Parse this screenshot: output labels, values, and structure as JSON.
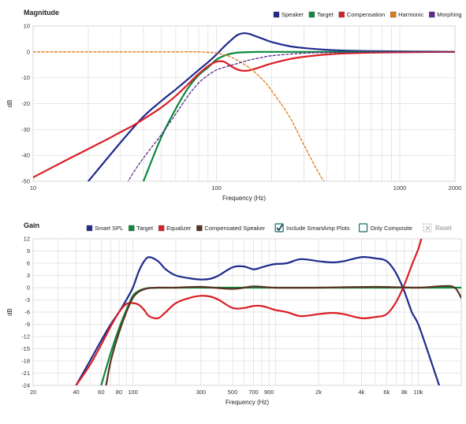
{
  "chart_data": [
    {
      "type": "line",
      "title": "Magnitude",
      "xlabel": "Frequency (Hz)",
      "ylabel": "dB",
      "xscale": "log",
      "xlim": [
        10,
        2000
      ],
      "ylim": [
        -50,
        10
      ],
      "xticks": [
        {
          "v": 10,
          "label": "10"
        },
        {
          "v": 100,
          "label": "100"
        },
        {
          "v": 1000,
          "label": "1000"
        },
        {
          "v": 2000,
          "label": "2000"
        }
      ],
      "yticks": [
        10,
        0,
        -10,
        -20,
        -30,
        -40,
        -50
      ],
      "grid": true,
      "legend": "top-right",
      "series": [
        {
          "name": "Speaker",
          "color": "#1f2a8c",
          "dashed": false,
          "x": [
            20,
            30,
            40,
            50,
            60,
            70,
            80,
            90,
            100,
            110,
            120,
            130,
            140,
            150,
            160,
            180,
            200,
            250,
            300,
            400,
            500,
            700,
            1000,
            1500,
            2000
          ],
          "y": [
            -50,
            -35,
            -25,
            -19,
            -14.5,
            -10.5,
            -7,
            -4,
            -1,
            2,
            4.5,
            6.5,
            7.2,
            7,
            6.3,
            5,
            3.8,
            2.2,
            1.5,
            0.8,
            0.5,
            0.3,
            0.2,
            0.1,
            0
          ]
        },
        {
          "name": "Target",
          "color": "#0a8a3a",
          "dashed": false,
          "x": [
            40,
            50,
            60,
            70,
            80,
            90,
            100,
            110,
            120,
            130,
            150,
            170,
            200,
            300,
            500,
            1000,
            2000
          ],
          "y": [
            -50,
            -33,
            -22,
            -14,
            -9,
            -6,
            -3,
            -1.5,
            -0.7,
            -0.3,
            -0.1,
            0,
            0,
            0,
            0,
            0,
            0
          ]
        },
        {
          "name": "Compensation",
          "color": "#d91f26",
          "dashed": false,
          "x": [
            10,
            15,
            20,
            25,
            30,
            35,
            40,
            50,
            60,
            70,
            80,
            90,
            100,
            110,
            120,
            130,
            140,
            150,
            170,
            200,
            250,
            300,
            400,
            500,
            700,
            1000,
            2000
          ],
          "y": [
            -48.5,
            -42,
            -37.5,
            -34,
            -31,
            -28.5,
            -26,
            -21.5,
            -17,
            -12.5,
            -8.5,
            -5.5,
            -3.8,
            -3.8,
            -5.5,
            -6.8,
            -7.3,
            -7.2,
            -6.1,
            -4.5,
            -2.8,
            -1.9,
            -1,
            -0.6,
            -0.3,
            -0.15,
            0
          ]
        },
        {
          "name": "Harmonic",
          "color": "#e07b10",
          "dashed": true,
          "x": [
            10,
            20,
            40,
            60,
            80,
            100,
            120,
            150,
            180,
            200,
            250,
            300,
            350,
            400
          ],
          "y": [
            0,
            0,
            0,
            0,
            0,
            -0.5,
            -2,
            -6,
            -11,
            -15,
            -25,
            -36,
            -45,
            -52
          ]
        },
        {
          "name": "Morphing",
          "color": "#5a2a8c",
          "dashed": true,
          "x": [
            30,
            35,
            40,
            50,
            60,
            70,
            80,
            90,
            100,
            110,
            120,
            130,
            140,
            150,
            170,
            200,
            300,
            500,
            1000,
            2000
          ],
          "y": [
            -55,
            -47,
            -41,
            -32,
            -24,
            -17,
            -12,
            -9,
            -7,
            -6,
            -5.2,
            -4.5,
            -3.8,
            -3.2,
            -2.4,
            -1.5,
            -0.5,
            -0.2,
            0,
            0
          ]
        }
      ]
    },
    {
      "type": "line",
      "title": "Gain",
      "xlabel": "Frequency (Hz)",
      "ylabel": "dB",
      "xscale": "log",
      "xlim": [
        20,
        20000
      ],
      "ylim": [
        -24,
        12
      ],
      "xticks": [
        {
          "v": 20,
          "label": "20"
        },
        {
          "v": 40,
          "label": "40"
        },
        {
          "v": 60,
          "label": "60"
        },
        {
          "v": 80,
          "label": "80"
        },
        {
          "v": 100,
          "label": "100"
        },
        {
          "v": 300,
          "label": "300"
        },
        {
          "v": 500,
          "label": "500"
        },
        {
          "v": 700,
          "label": "700"
        },
        {
          "v": 900,
          "label": "900"
        },
        {
          "v": 2000,
          "label": "2k"
        },
        {
          "v": 4000,
          "label": "4k"
        },
        {
          "v": 6000,
          "label": "6k"
        },
        {
          "v": 8000,
          "label": "8k"
        },
        {
          "v": 10000,
          "label": "10k"
        }
      ],
      "yticks": [
        12,
        9,
        6,
        3,
        0,
        -3,
        -6,
        -9,
        -12,
        -15,
        -18,
        -21,
        -24
      ],
      "grid": true,
      "legend": "top",
      "series": [
        {
          "name": "Smart SPL",
          "color": "#1f2a8c",
          "x": [
            40,
            50,
            60,
            70,
            80,
            90,
            100,
            110,
            120,
            130,
            150,
            170,
            200,
            250,
            300,
            350,
            400,
            500,
            600,
            700,
            800,
            900,
            1000,
            1200,
            1500,
            2000,
            2500,
            3000,
            4000,
            5000,
            6000,
            7000,
            8000,
            9000,
            10000,
            12000,
            14000
          ],
          "y": [
            -24,
            -18,
            -13,
            -9,
            -6,
            -3,
            0,
            4,
            6.5,
            7.5,
            6.5,
            4.5,
            3,
            2.3,
            2,
            2.2,
            3,
            5,
            5.2,
            4.5,
            5,
            5.5,
            5.8,
            6,
            7,
            6.5,
            6.2,
            6.5,
            7.5,
            7.2,
            6.5,
            3.5,
            -1,
            -6,
            -9,
            -17,
            -24
          ]
        },
        {
          "name": "Target",
          "color": "#0a8a3a",
          "x": [
            60,
            70,
            80,
            90,
            100,
            110,
            120,
            130,
            150,
            200,
            300,
            500,
            1000,
            2000,
            5000,
            10000,
            15000,
            20000
          ],
          "y": [
            -24,
            -16,
            -10,
            -5.5,
            -2,
            -0.8,
            -0.3,
            -0.1,
            0,
            0,
            0,
            0,
            0,
            0,
            0,
            0,
            0,
            0
          ]
        },
        {
          "name": "Equalizer",
          "color": "#d91f26",
          "x": [
            40,
            50,
            60,
            70,
            80,
            90,
            100,
            110,
            120,
            130,
            150,
            170,
            200,
            250,
            300,
            350,
            400,
            500,
            600,
            700,
            800,
            900,
            1000,
            1200,
            1500,
            2000,
            2500,
            3000,
            4000,
            5000,
            6000,
            7000,
            8000,
            9000,
            10000,
            10500
          ],
          "y": [
            -24,
            -19,
            -14,
            -9.5,
            -6,
            -4,
            -3.8,
            -4.2,
            -5.5,
            -7,
            -7.5,
            -6,
            -3.8,
            -2.5,
            -2,
            -2.2,
            -3,
            -5,
            -5,
            -4.5,
            -4.5,
            -5,
            -5.5,
            -6,
            -7,
            -6.5,
            -6.2,
            -6.5,
            -7.5,
            -7.2,
            -6.5,
            -3.5,
            0.8,
            5.5,
            9.5,
            12
          ]
        },
        {
          "name": "Compensated Speaker",
          "color": "#5a3222",
          "x": [
            65,
            70,
            80,
            90,
            100,
            110,
            120,
            130,
            150,
            200,
            300,
            500,
            700,
            1000,
            2000,
            5000,
            10000,
            15000,
            18000,
            20000
          ],
          "y": [
            -24,
            -18,
            -11,
            -6,
            -2.5,
            -1,
            -0.4,
            -0.1,
            0,
            0,
            0.2,
            -0.3,
            0.3,
            0,
            0,
            0.2,
            0,
            0.4,
            0,
            -2.5
          ]
        }
      ],
      "controls": {
        "include_smartamp": {
          "label": "Include SmartAmp Plots",
          "checked": true
        },
        "only_composite": {
          "label": "Only Composite",
          "checked": false
        },
        "reset": {
          "label": "Reset"
        }
      }
    }
  ]
}
